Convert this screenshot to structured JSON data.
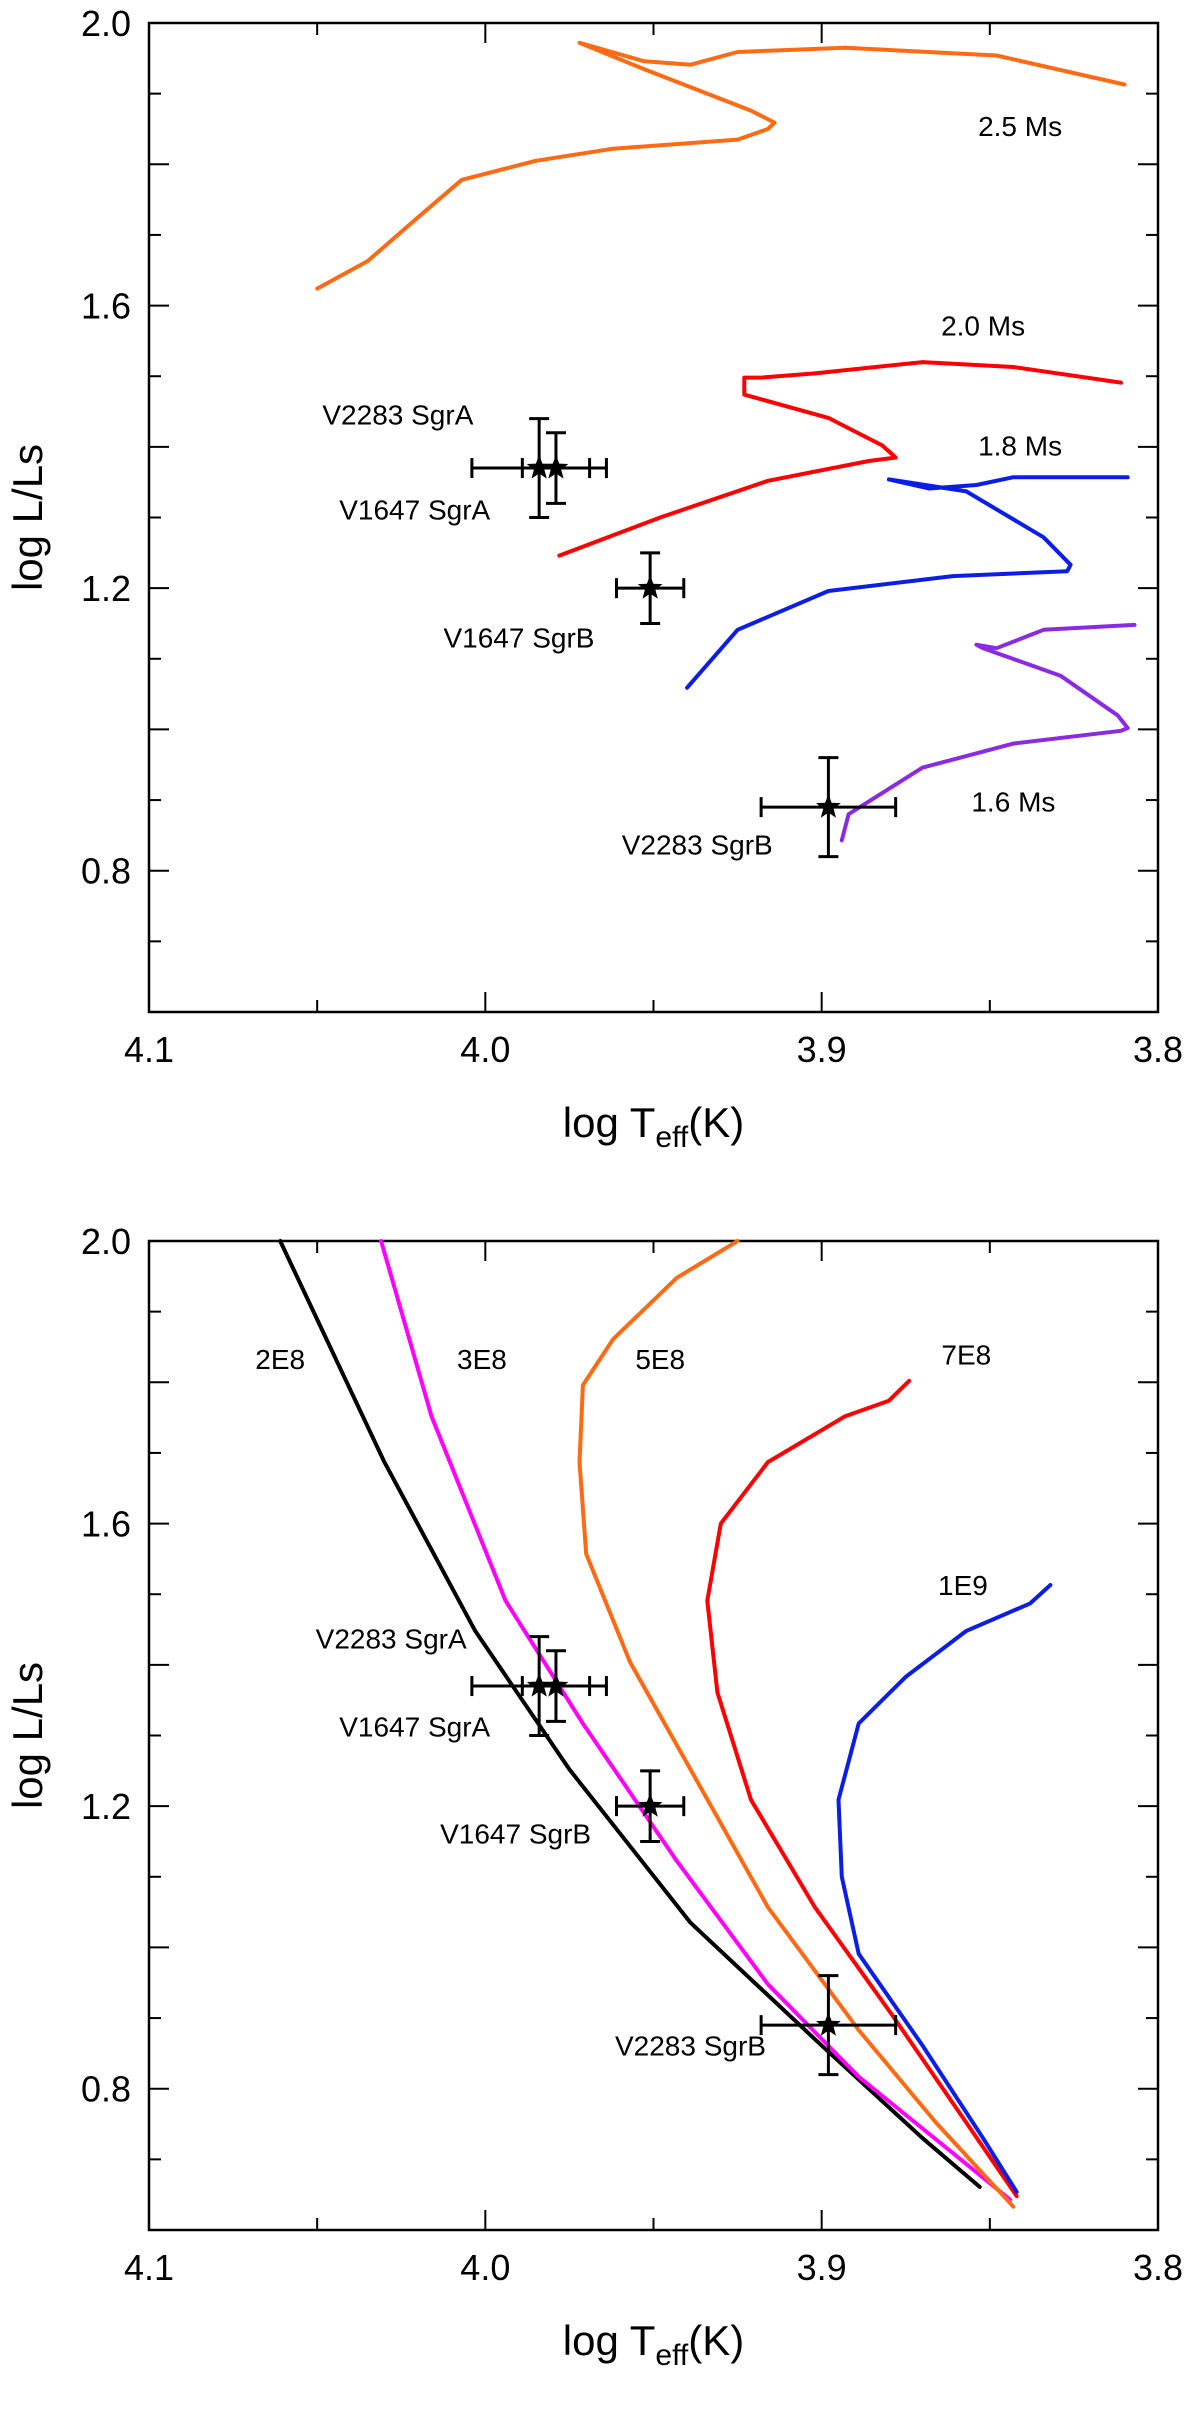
{
  "chart_data": [
    {
      "type": "line",
      "xlabel": "log T",
      "xlabel_sub": "eff",
      "xlabel_unit": "(K)",
      "ylabel": "log L/Ls",
      "xlim": [
        4.1,
        3.8
      ],
      "ylim": [
        0.6,
        2.0
      ],
      "x_ticks": [
        "4.1",
        "4.0",
        "3.9",
        "3.8"
      ],
      "y_ticks": [
        "0.8",
        "1.2",
        "1.6",
        "2.0"
      ],
      "grid": false,
      "series": [
        {
          "name": "2.5 Ms",
          "color": "#ff6a13",
          "label_at": [
            3.841,
            1.854
          ],
          "points": [
            [
              4.05,
              1.624
            ],
            [
              4.035,
              1.663
            ],
            [
              4.02,
              1.725
            ],
            [
              4.007,
              1.778
            ],
            [
              3.985,
              1.805
            ],
            [
              3.962,
              1.822
            ],
            [
              3.925,
              1.835
            ],
            [
              3.916,
              1.85
            ],
            [
              3.914,
              1.859
            ],
            [
              3.921,
              1.876
            ],
            [
              3.953,
              1.935
            ],
            [
              3.972,
              1.972
            ],
            [
              3.953,
              1.946
            ],
            [
              3.939,
              1.941
            ],
            [
              3.925,
              1.959
            ],
            [
              3.893,
              1.965
            ],
            [
              3.848,
              1.954
            ],
            [
              3.81,
              1.913
            ]
          ]
        },
        {
          "name": "2.0 Ms",
          "color": "#ff0000",
          "label_at": [
            3.852,
            1.572
          ],
          "points": [
            [
              3.978,
              1.246
            ],
            [
              3.948,
              1.3
            ],
            [
              3.916,
              1.352
            ],
            [
              3.886,
              1.38
            ],
            [
              3.878,
              1.385
            ],
            [
              3.882,
              1.402
            ],
            [
              3.898,
              1.441
            ],
            [
              3.923,
              1.474
            ],
            [
              3.923,
              1.498
            ],
            [
              3.918,
              1.498
            ],
            [
              3.902,
              1.504
            ],
            [
              3.87,
              1.52
            ],
            [
              3.843,
              1.513
            ],
            [
              3.811,
              1.491
            ]
          ]
        },
        {
          "name": "1.8 Ms",
          "color": "#0a1ee6",
          "label_at": [
            3.841,
            1.402
          ],
          "points": [
            [
              3.94,
              1.059
            ],
            [
              3.925,
              1.141
            ],
            [
              3.898,
              1.196
            ],
            [
              3.861,
              1.217
            ],
            [
              3.827,
              1.224
            ],
            [
              3.826,
              1.233
            ],
            [
              3.834,
              1.272
            ],
            [
              3.857,
              1.337
            ],
            [
              3.88,
              1.354
            ],
            [
              3.868,
              1.341
            ],
            [
              3.854,
              1.346
            ],
            [
              3.843,
              1.357
            ],
            [
              3.809,
              1.357
            ]
          ]
        },
        {
          "name": "1.6 Ms",
          "color": "#8a2be2",
          "label_at": [
            3.843,
            0.898
          ],
          "points": [
            [
              3.894,
              0.843
            ],
            [
              3.892,
              0.88
            ],
            [
              3.87,
              0.946
            ],
            [
              3.843,
              0.98
            ],
            [
              3.811,
              0.998
            ],
            [
              3.809,
              1.002
            ],
            [
              3.812,
              1.02
            ],
            [
              3.829,
              1.076
            ],
            [
              3.852,
              1.115
            ],
            [
              3.854,
              1.12
            ],
            [
              3.848,
              1.115
            ],
            [
              3.834,
              1.141
            ],
            [
              3.807,
              1.148
            ]
          ]
        }
      ],
      "stars": [
        {
          "name": "V2283 SgrA",
          "logT": 3.984,
          "logL": 1.37,
          "errT": 0.02,
          "errL": 0.07,
          "label_at": [
            4.026,
            1.446
          ]
        },
        {
          "name": "V1647 SgrA",
          "logT": 3.979,
          "logL": 1.37,
          "errT": 0.01,
          "errL": 0.05,
          "label_at": [
            4.021,
            1.311
          ]
        },
        {
          "name": "V1647 SgrB",
          "logT": 3.951,
          "logL": 1.2,
          "errT": 0.01,
          "errL": 0.05,
          "label_at": [
            3.99,
            1.13
          ]
        },
        {
          "name": "V2283 SgrB",
          "logT": 3.898,
          "logL": 0.89,
          "errT": 0.02,
          "errL": 0.07,
          "label_at": [
            3.937,
            0.837
          ]
        }
      ]
    },
    {
      "type": "line",
      "xlabel": "log T",
      "xlabel_sub": "eff",
      "xlabel_unit": "(K)",
      "ylabel": "log L/Ls",
      "xlim": [
        4.1,
        3.8
      ],
      "ylim": [
        0.6,
        2.0
      ],
      "x_ticks": [
        "4.1",
        "4.0",
        "3.9",
        "3.8"
      ],
      "y_ticks": [
        "0.8",
        "1.2",
        "1.6",
        "2.0"
      ],
      "grid": false,
      "series": [
        {
          "name": "2E8",
          "color": "#000000",
          "label_at": [
            4.061,
            1.833
          ],
          "points": [
            [
              4.061,
              2.0
            ],
            [
              4.03,
              1.687
            ],
            [
              4.003,
              1.448
            ],
            [
              3.975,
              1.252
            ],
            [
              3.939,
              1.035
            ],
            [
              3.9,
              0.861
            ],
            [
              3.87,
              0.73
            ],
            [
              3.853,
              0.661
            ]
          ]
        },
        {
          "name": "3E8",
          "color": "#ff00ff",
          "label_at": [
            4.001,
            1.833
          ],
          "points": [
            [
              4.031,
              2.0
            ],
            [
              4.016,
              1.752
            ],
            [
              3.994,
              1.491
            ],
            [
              3.971,
              1.317
            ],
            [
              3.943,
              1.122
            ],
            [
              3.916,
              0.948
            ],
            [
              3.889,
              0.817
            ],
            [
              3.861,
              0.709
            ],
            [
              3.844,
              0.643
            ]
          ]
        },
        {
          "name": "5E8",
          "color": "#ff6a13",
          "label_at": [
            3.948,
            1.833
          ],
          "points": [
            [
              3.925,
              2.0
            ],
            [
              3.943,
              1.948
            ],
            [
              3.962,
              1.861
            ],
            [
              3.971,
              1.796
            ],
            [
              3.972,
              1.687
            ],
            [
              3.97,
              1.557
            ],
            [
              3.957,
              1.404
            ],
            [
              3.939,
              1.252
            ],
            [
              3.916,
              1.057
            ],
            [
              3.889,
              0.883
            ],
            [
              3.866,
              0.752
            ],
            [
              3.843,
              0.633
            ]
          ]
        },
        {
          "name": "7E8",
          "color": "#ff0000",
          "label_at": [
            3.857,
            1.839
          ],
          "points": [
            [
              3.874,
              1.802
            ],
            [
              3.88,
              1.774
            ],
            [
              3.893,
              1.752
            ],
            [
              3.916,
              1.687
            ],
            [
              3.93,
              1.6
            ],
            [
              3.934,
              1.491
            ],
            [
              3.931,
              1.361
            ],
            [
              3.921,
              1.209
            ],
            [
              3.902,
              1.057
            ],
            [
              3.879,
              0.904
            ],
            [
              3.857,
              0.752
            ],
            [
              3.842,
              0.648
            ]
          ]
        },
        {
          "name": "1E9",
          "color": "#0a1ee6",
          "label_at": [
            3.858,
            1.513
          ],
          "points": [
            [
              3.832,
              1.513
            ],
            [
              3.838,
              1.487
            ],
            [
              3.857,
              1.448
            ],
            [
              3.875,
              1.383
            ],
            [
              3.889,
              1.317
            ],
            [
              3.895,
              1.209
            ],
            [
              3.894,
              1.1
            ],
            [
              3.889,
              0.991
            ],
            [
              3.87,
              0.861
            ],
            [
              3.852,
              0.73
            ],
            [
              3.842,
              0.654
            ]
          ]
        }
      ],
      "stars": [
        {
          "name": "V2283 SgrA",
          "logT": 3.984,
          "logL": 1.37,
          "errT": 0.02,
          "errL": 0.07,
          "label_at": [
            4.028,
            1.437
          ]
        },
        {
          "name": "V1647 SgrA",
          "logT": 3.979,
          "logL": 1.37,
          "errT": 0.01,
          "errL": 0.05,
          "label_at": [
            4.021,
            1.313
          ]
        },
        {
          "name": "V1647 SgrB",
          "logT": 3.951,
          "logL": 1.2,
          "errT": 0.01,
          "errL": 0.05,
          "label_at": [
            3.991,
            1.161
          ]
        },
        {
          "name": "V2283 SgrB",
          "logT": 3.898,
          "logL": 0.89,
          "errT": 0.02,
          "errL": 0.07,
          "label_at": [
            3.939,
            0.861
          ]
        }
      ]
    }
  ]
}
